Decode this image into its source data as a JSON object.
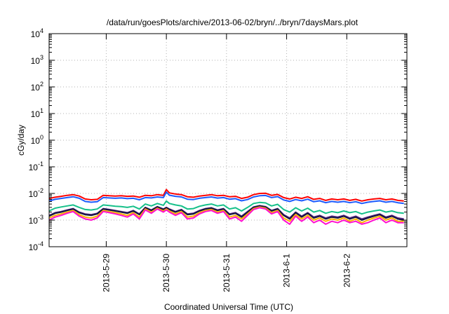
{
  "chart_data": {
    "type": "line",
    "title": "/data/run/goesPlots/archive/2013-06-02/bryn/../bryn/7daysMars.plot",
    "xlabel": "Coordinated Universal Time (UTC)",
    "ylabel": "cGy/day",
    "y_scale": "log",
    "ylim": [
      0.0001,
      10000
    ],
    "xlim": [
      -1.95,
      4.0
    ],
    "grid": true,
    "x_ticks": [
      {
        "value": -1,
        "label": "2013-5-29"
      },
      {
        "value": 0,
        "label": "2013-5-30"
      },
      {
        "value": 1,
        "label": "2013-5-31"
      },
      {
        "value": 2,
        "label": "2013-6-1"
      },
      {
        "value": 3,
        "label": "2013-6-2"
      }
    ],
    "y_ticks": [
      {
        "value": 0.0001,
        "base": "10",
        "exp": "-4"
      },
      {
        "value": 0.001,
        "base": "10",
        "exp": "-3"
      },
      {
        "value": 0.01,
        "base": "10",
        "exp": "-2"
      },
      {
        "value": 0.1,
        "base": "10",
        "exp": "-1"
      },
      {
        "value": 1,
        "base": "10",
        "exp": "0"
      },
      {
        "value": 10,
        "base": "10",
        "exp": "1"
      },
      {
        "value": 100,
        "base": "10",
        "exp": "2"
      },
      {
        "value": 1000,
        "base": "10",
        "exp": "3"
      },
      {
        "value": 10000,
        "base": "10",
        "exp": "4"
      }
    ],
    "x": [
      -1.95,
      -1.85,
      -1.75,
      -1.65,
      -1.55,
      -1.45,
      -1.35,
      -1.25,
      -1.15,
      -1.05,
      -0.95,
      -0.85,
      -0.75,
      -0.65,
      -0.55,
      -0.45,
      -0.35,
      -0.25,
      -0.15,
      -0.05,
      0.0,
      0.05,
      0.15,
      0.25,
      0.35,
      0.45,
      0.55,
      0.65,
      0.75,
      0.85,
      0.95,
      1.05,
      1.15,
      1.25,
      1.35,
      1.45,
      1.55,
      1.65,
      1.75,
      1.85,
      1.95,
      2.05,
      2.15,
      2.25,
      2.35,
      2.45,
      2.55,
      2.65,
      2.75,
      2.85,
      2.95,
      3.05,
      3.15,
      3.25,
      3.35,
      3.45,
      3.55,
      3.65,
      3.75,
      3.85,
      3.95
    ],
    "series": [
      {
        "color": "#ff0000",
        "values": [
          0.0065,
          0.0072,
          0.0078,
          0.0085,
          0.009,
          0.008,
          0.0062,
          0.0058,
          0.006,
          0.0085,
          0.0082,
          0.008,
          0.0082,
          0.0078,
          0.008,
          0.0072,
          0.0085,
          0.0082,
          0.009,
          0.0085,
          0.014,
          0.0105,
          0.0095,
          0.009,
          0.0075,
          0.0072,
          0.008,
          0.0085,
          0.009,
          0.0082,
          0.0085,
          0.0075,
          0.0078,
          0.0065,
          0.0072,
          0.009,
          0.01,
          0.0102,
          0.0085,
          0.0092,
          0.007,
          0.0062,
          0.0072,
          0.0065,
          0.0075,
          0.006,
          0.0065,
          0.0055,
          0.0062,
          0.0058,
          0.0062,
          0.0055,
          0.006,
          0.0052,
          0.0058,
          0.0062,
          0.0065,
          0.0058,
          0.0062,
          0.0055,
          0.0052
        ]
      },
      {
        "color": "#1e5bff",
        "values": [
          0.0052,
          0.006,
          0.0065,
          0.007,
          0.0075,
          0.0066,
          0.005,
          0.0047,
          0.0049,
          0.007,
          0.0068,
          0.0066,
          0.0068,
          0.0064,
          0.0066,
          0.0058,
          0.007,
          0.0068,
          0.0074,
          0.007,
          0.0112,
          0.0086,
          0.0078,
          0.0074,
          0.0061,
          0.0059,
          0.0066,
          0.007,
          0.0074,
          0.0067,
          0.007,
          0.0061,
          0.0064,
          0.0053,
          0.0059,
          0.0074,
          0.0082,
          0.0084,
          0.007,
          0.0076,
          0.0057,
          0.005,
          0.0059,
          0.0053,
          0.0061,
          0.0049,
          0.0053,
          0.0045,
          0.005,
          0.0047,
          0.005,
          0.0045,
          0.0049,
          0.0042,
          0.0047,
          0.005,
          0.0053,
          0.0047,
          0.005,
          0.0045,
          0.0042
        ]
      },
      {
        "color": "#16c08a",
        "values": [
          0.0022,
          0.0028,
          0.0031,
          0.0034,
          0.0037,
          0.003,
          0.0025,
          0.0024,
          0.0026,
          0.0037,
          0.0035,
          0.0033,
          0.0032,
          0.003,
          0.0033,
          0.0026,
          0.004,
          0.0034,
          0.0042,
          0.0036,
          0.0052,
          0.0042,
          0.0037,
          0.0034,
          0.0026,
          0.0027,
          0.0033,
          0.0037,
          0.004,
          0.0034,
          0.0037,
          0.0026,
          0.0029,
          0.0022,
          0.003,
          0.0042,
          0.0046,
          0.0044,
          0.0034,
          0.0039,
          0.0025,
          0.002,
          0.0029,
          0.0022,
          0.0028,
          0.002,
          0.0023,
          0.0018,
          0.0021,
          0.0019,
          0.0022,
          0.0019,
          0.0021,
          0.0017,
          0.002,
          0.0022,
          0.0024,
          0.002,
          0.0022,
          0.0019,
          0.0018
        ]
      },
      {
        "color": "#5a2a8a",
        "values": [
          0.0015,
          0.0019,
          0.0021,
          0.0024,
          0.0027,
          0.002,
          0.0017,
          0.0016,
          0.0018,
          0.0027,
          0.0025,
          0.0023,
          0.0021,
          0.0019,
          0.0023,
          0.0017,
          0.003,
          0.0024,
          0.0032,
          0.0026,
          0.003,
          0.0026,
          0.0021,
          0.0025,
          0.0017,
          0.0018,
          0.0023,
          0.0027,
          0.0029,
          0.0024,
          0.0027,
          0.0017,
          0.0019,
          0.0014,
          0.0021,
          0.0031,
          0.0035,
          0.0032,
          0.0023,
          0.0027,
          0.0016,
          0.0012,
          0.002,
          0.0014,
          0.0019,
          0.0013,
          0.0015,
          0.0012,
          0.0014,
          0.0013,
          0.0015,
          0.0012,
          0.0014,
          0.0011,
          0.0013,
          0.0015,
          0.0017,
          0.0013,
          0.0015,
          0.0012,
          0.0011
        ]
      },
      {
        "color": "#14143c",
        "values": [
          0.0014,
          0.0018,
          0.002,
          0.0023,
          0.0026,
          0.0019,
          0.0016,
          0.0015,
          0.0017,
          0.0026,
          0.0024,
          0.0022,
          0.002,
          0.0018,
          0.0022,
          0.0016,
          0.0029,
          0.0023,
          0.0031,
          0.0025,
          0.0029,
          0.0025,
          0.002,
          0.0024,
          0.0016,
          0.0017,
          0.0022,
          0.0026,
          0.0028,
          0.0023,
          0.0026,
          0.0016,
          0.0018,
          0.0013,
          0.002,
          0.003,
          0.0034,
          0.0031,
          0.0022,
          0.0026,
          0.0015,
          0.0011,
          0.0019,
          0.0013,
          0.0018,
          0.0012,
          0.0014,
          0.0011,
          0.0013,
          0.0012,
          0.0014,
          0.0011,
          0.0013,
          0.001,
          0.0012,
          0.0014,
          0.0016,
          0.0012,
          0.0014,
          0.0011,
          0.001
        ]
      },
      {
        "color": "#ffb000",
        "values": [
          0.0012,
          0.0015,
          0.0017,
          0.002,
          0.0023,
          0.0016,
          0.0013,
          0.0012,
          0.0014,
          0.0023,
          0.0021,
          0.0019,
          0.0017,
          0.0015,
          0.0019,
          0.0013,
          0.0026,
          0.002,
          0.0028,
          0.0022,
          0.0026,
          0.0022,
          0.0017,
          0.0021,
          0.0013,
          0.0014,
          0.0019,
          0.0023,
          0.0025,
          0.002,
          0.0023,
          0.0013,
          0.0015,
          0.0011,
          0.0017,
          0.0027,
          0.0031,
          0.0028,
          0.0019,
          0.0023,
          0.0012,
          0.0009,
          0.0016,
          0.0011,
          0.0015,
          0.001,
          0.0012,
          0.0009,
          0.0011,
          0.001,
          0.0012,
          0.0009,
          0.0011,
          0.0008,
          0.001,
          0.0012,
          0.0014,
          0.001,
          0.0012,
          0.0009,
          0.0009
        ]
      },
      {
        "color": "#ff10d0",
        "values": [
          0.001,
          0.0013,
          0.0015,
          0.0018,
          0.0021,
          0.0014,
          0.0011,
          0.001,
          0.0012,
          0.0021,
          0.0019,
          0.0017,
          0.0015,
          0.0013,
          0.0017,
          0.0011,
          0.0024,
          0.0018,
          0.0026,
          0.002,
          0.0024,
          0.002,
          0.0015,
          0.0019,
          0.0011,
          0.0012,
          0.0017,
          0.0021,
          0.0023,
          0.0018,
          0.0021,
          0.0011,
          0.0013,
          0.0009,
          0.0015,
          0.0025,
          0.0029,
          0.0026,
          0.0017,
          0.0021,
          0.001,
          0.0007,
          0.0014,
          0.0009,
          0.0013,
          0.0008,
          0.001,
          0.0007,
          0.0009,
          0.0008,
          0.001,
          0.0008,
          0.0009,
          0.0007,
          0.0008,
          0.001,
          0.0012,
          0.0008,
          0.001,
          0.0008,
          0.0008
        ]
      }
    ]
  }
}
